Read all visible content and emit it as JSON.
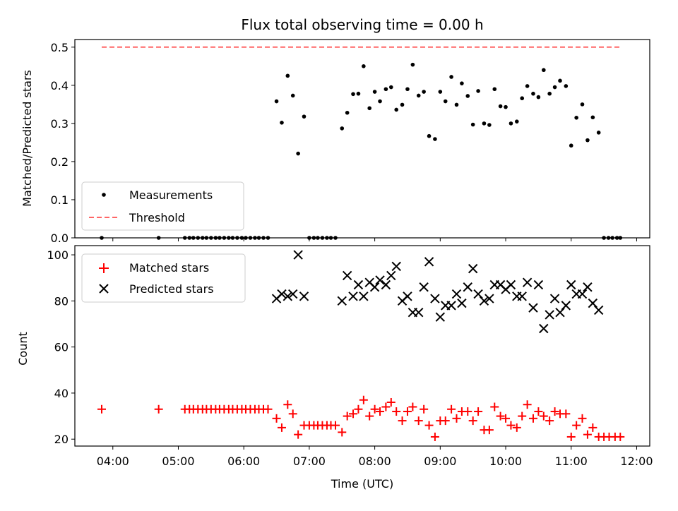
{
  "chart_data": [
    {
      "type": "scatter",
      "title": "Flux total observing time = 0.00 h",
      "ylabel": "Matched/Predicted stars",
      "xlabel": "",
      "x_unit": "hours UTC",
      "xlim": [
        3.42,
        12.2
      ],
      "ylim": [
        0.0,
        0.52
      ],
      "yticks": [
        0.0,
        0.1,
        0.2,
        0.3,
        0.4,
        0.5
      ],
      "ytick_labels": [
        "0.0",
        "0.1",
        "0.2",
        "0.3",
        "0.4",
        "0.5"
      ],
      "legend_position": "lower-left",
      "grid": false,
      "series": [
        {
          "name": "Measurements",
          "kind": "points",
          "color": "#000000",
          "points": [
            [
              3.83,
              0.0
            ],
            [
              4.7,
              0.0
            ],
            [
              5.1,
              0.0
            ],
            [
              5.17,
              0.0
            ],
            [
              5.23,
              0.0
            ],
            [
              5.3,
              0.0
            ],
            [
              5.37,
              0.0
            ],
            [
              5.43,
              0.0
            ],
            [
              5.5,
              0.0
            ],
            [
              5.57,
              0.0
            ],
            [
              5.63,
              0.0
            ],
            [
              5.7,
              0.0
            ],
            [
              5.77,
              0.0
            ],
            [
              5.83,
              0.0
            ],
            [
              5.9,
              0.0
            ],
            [
              5.97,
              0.0
            ],
            [
              6.03,
              0.0
            ],
            [
              6.1,
              0.0
            ],
            [
              6.17,
              0.0
            ],
            [
              6.23,
              0.0
            ],
            [
              6.3,
              0.0
            ],
            [
              6.37,
              0.0
            ],
            [
              6.5,
              0.358
            ],
            [
              6.58,
              0.302
            ],
            [
              6.67,
              0.425
            ],
            [
              6.75,
              0.373
            ],
            [
              6.83,
              0.221
            ],
            [
              6.92,
              0.318
            ],
            [
              7.0,
              0.0
            ],
            [
              7.07,
              0.0
            ],
            [
              7.13,
              0.0
            ],
            [
              7.2,
              0.0
            ],
            [
              7.27,
              0.0
            ],
            [
              7.33,
              0.0
            ],
            [
              7.4,
              0.0
            ],
            [
              7.5,
              0.287
            ],
            [
              7.58,
              0.328
            ],
            [
              7.67,
              0.377
            ],
            [
              7.75,
              0.378
            ],
            [
              7.83,
              0.45
            ],
            [
              7.92,
              0.34
            ],
            [
              8.0,
              0.383
            ],
            [
              8.08,
              0.358
            ],
            [
              8.17,
              0.39
            ],
            [
              8.25,
              0.395
            ],
            [
              8.33,
              0.336
            ],
            [
              8.42,
              0.349
            ],
            [
              8.5,
              0.39
            ],
            [
              8.58,
              0.454
            ],
            [
              8.67,
              0.373
            ],
            [
              8.75,
              0.383
            ],
            [
              8.83,
              0.267
            ],
            [
              8.92,
              0.259
            ],
            [
              9.0,
              0.383
            ],
            [
              9.08,
              0.358
            ],
            [
              9.17,
              0.422
            ],
            [
              9.25,
              0.349
            ],
            [
              9.33,
              0.405
            ],
            [
              9.42,
              0.372
            ],
            [
              9.5,
              0.297
            ],
            [
              9.58,
              0.385
            ],
            [
              9.67,
              0.3
            ],
            [
              9.75,
              0.296
            ],
            [
              9.83,
              0.39
            ],
            [
              9.92,
              0.345
            ],
            [
              10.0,
              0.343
            ],
            [
              10.08,
              0.3
            ],
            [
              10.17,
              0.305
            ],
            [
              10.25,
              0.366
            ],
            [
              10.33,
              0.398
            ],
            [
              10.42,
              0.378
            ],
            [
              10.5,
              0.369
            ],
            [
              10.58,
              0.44
            ],
            [
              10.67,
              0.378
            ],
            [
              10.75,
              0.395
            ],
            [
              10.83,
              0.412
            ],
            [
              10.92,
              0.398
            ],
            [
              11.0,
              0.242
            ],
            [
              11.08,
              0.315
            ],
            [
              11.17,
              0.35
            ],
            [
              11.25,
              0.256
            ],
            [
              11.33,
              0.316
            ],
            [
              11.42,
              0.276
            ],
            [
              11.5,
              0.0
            ],
            [
              11.57,
              0.0
            ],
            [
              11.63,
              0.0
            ],
            [
              11.7,
              0.0
            ],
            [
              11.75,
              0.0
            ]
          ]
        },
        {
          "name": "Threshold",
          "kind": "dashed-line",
          "color": "#ff6666",
          "points": [
            [
              3.83,
              0.5
            ],
            [
              11.75,
              0.5
            ]
          ]
        }
      ]
    },
    {
      "type": "scatter",
      "title": "",
      "ylabel": "Count",
      "xlabel": "Time (UTC)",
      "x_unit": "hours UTC",
      "xlim": [
        3.42,
        12.2
      ],
      "ylim": [
        17,
        104
      ],
      "yticks": [
        20,
        40,
        60,
        80,
        100
      ],
      "ytick_labels": [
        "20",
        "40",
        "60",
        "80",
        "100"
      ],
      "xticks": [
        4,
        5,
        6,
        7,
        8,
        9,
        10,
        11,
        12
      ],
      "xtick_labels": [
        "04:00",
        "05:00",
        "06:00",
        "07:00",
        "08:00",
        "09:00",
        "10:00",
        "11:00",
        "12:00"
      ],
      "legend_position": "upper-left",
      "grid": false,
      "series": [
        {
          "name": "Matched stars",
          "kind": "plus",
          "color": "#ff0000",
          "points": [
            [
              3.83,
              33
            ],
            [
              4.7,
              33
            ],
            [
              5.1,
              33
            ],
            [
              5.17,
              33
            ],
            [
              5.23,
              33
            ],
            [
              5.3,
              33
            ],
            [
              5.37,
              33
            ],
            [
              5.43,
              33
            ],
            [
              5.5,
              33
            ],
            [
              5.57,
              33
            ],
            [
              5.63,
              33
            ],
            [
              5.7,
              33
            ],
            [
              5.77,
              33
            ],
            [
              5.83,
              33
            ],
            [
              5.9,
              33
            ],
            [
              5.97,
              33
            ],
            [
              6.03,
              33
            ],
            [
              6.1,
              33
            ],
            [
              6.17,
              33
            ],
            [
              6.23,
              33
            ],
            [
              6.3,
              33
            ],
            [
              6.37,
              33
            ],
            [
              6.5,
              29
            ],
            [
              6.58,
              25
            ],
            [
              6.67,
              35
            ],
            [
              6.75,
              31
            ],
            [
              6.83,
              22
            ],
            [
              6.92,
              26
            ],
            [
              7.0,
              26
            ],
            [
              7.07,
              26
            ],
            [
              7.13,
              26
            ],
            [
              7.2,
              26
            ],
            [
              7.27,
              26
            ],
            [
              7.33,
              26
            ],
            [
              7.4,
              26
            ],
            [
              7.5,
              23
            ],
            [
              7.58,
              30
            ],
            [
              7.67,
              31
            ],
            [
              7.75,
              33
            ],
            [
              7.83,
              37
            ],
            [
              7.92,
              30
            ],
            [
              8.0,
              33
            ],
            [
              8.08,
              32
            ],
            [
              8.17,
              34
            ],
            [
              8.25,
              36
            ],
            [
              8.33,
              32
            ],
            [
              8.42,
              28
            ],
            [
              8.5,
              32
            ],
            [
              8.58,
              34
            ],
            [
              8.67,
              28
            ],
            [
              8.75,
              33
            ],
            [
              8.83,
              26
            ],
            [
              8.92,
              21
            ],
            [
              9.0,
              28
            ],
            [
              9.08,
              28
            ],
            [
              9.17,
              33
            ],
            [
              9.25,
              29
            ],
            [
              9.33,
              32
            ],
            [
              9.42,
              32
            ],
            [
              9.5,
              28
            ],
            [
              9.58,
              32
            ],
            [
              9.67,
              24
            ],
            [
              9.75,
              24
            ],
            [
              9.83,
              34
            ],
            [
              9.92,
              30
            ],
            [
              10.0,
              29
            ],
            [
              10.08,
              26
            ],
            [
              10.17,
              25
            ],
            [
              10.25,
              30
            ],
            [
              10.33,
              35
            ],
            [
              10.42,
              29
            ],
            [
              10.5,
              32
            ],
            [
              10.58,
              30
            ],
            [
              10.67,
              28
            ],
            [
              10.75,
              32
            ],
            [
              10.83,
              31
            ],
            [
              10.92,
              31
            ],
            [
              11.0,
              21
            ],
            [
              11.08,
              26
            ],
            [
              11.17,
              29
            ],
            [
              11.25,
              22
            ],
            [
              11.33,
              25
            ],
            [
              11.42,
              21
            ],
            [
              11.5,
              21
            ],
            [
              11.58,
              21
            ],
            [
              11.67,
              21
            ],
            [
              11.75,
              21
            ]
          ]
        },
        {
          "name": "Predicted stars",
          "kind": "x",
          "color": "#000000",
          "points": [
            [
              6.5,
              81
            ],
            [
              6.58,
              83
            ],
            [
              6.67,
              82
            ],
            [
              6.75,
              83
            ],
            [
              6.83,
              100
            ],
            [
              6.92,
              82
            ],
            [
              7.5,
              80
            ],
            [
              7.58,
              91
            ],
            [
              7.67,
              82
            ],
            [
              7.75,
              87
            ],
            [
              7.83,
              82
            ],
            [
              7.92,
              88
            ],
            [
              8.0,
              86
            ],
            [
              8.08,
              89
            ],
            [
              8.17,
              87
            ],
            [
              8.25,
              91
            ],
            [
              8.33,
              95
            ],
            [
              8.42,
              80
            ],
            [
              8.5,
              82
            ],
            [
              8.58,
              75
            ],
            [
              8.67,
              75
            ],
            [
              8.75,
              86
            ],
            [
              8.83,
              97
            ],
            [
              8.92,
              81
            ],
            [
              9.0,
              73
            ],
            [
              9.08,
              78
            ],
            [
              9.17,
              78
            ],
            [
              9.25,
              83
            ],
            [
              9.33,
              79
            ],
            [
              9.42,
              86
            ],
            [
              9.5,
              94
            ],
            [
              9.58,
              83
            ],
            [
              9.67,
              80
            ],
            [
              9.75,
              81
            ],
            [
              9.83,
              87
            ],
            [
              9.92,
              87
            ],
            [
              10.0,
              85
            ],
            [
              10.08,
              87
            ],
            [
              10.17,
              82
            ],
            [
              10.25,
              82
            ],
            [
              10.33,
              88
            ],
            [
              10.42,
              77
            ],
            [
              10.5,
              87
            ],
            [
              10.58,
              68
            ],
            [
              10.67,
              74
            ],
            [
              10.75,
              81
            ],
            [
              10.83,
              75
            ],
            [
              10.92,
              78
            ],
            [
              11.0,
              87
            ],
            [
              11.08,
              83
            ],
            [
              11.17,
              83
            ],
            [
              11.25,
              86
            ],
            [
              11.33,
              79
            ],
            [
              11.42,
              76
            ]
          ]
        }
      ]
    }
  ]
}
